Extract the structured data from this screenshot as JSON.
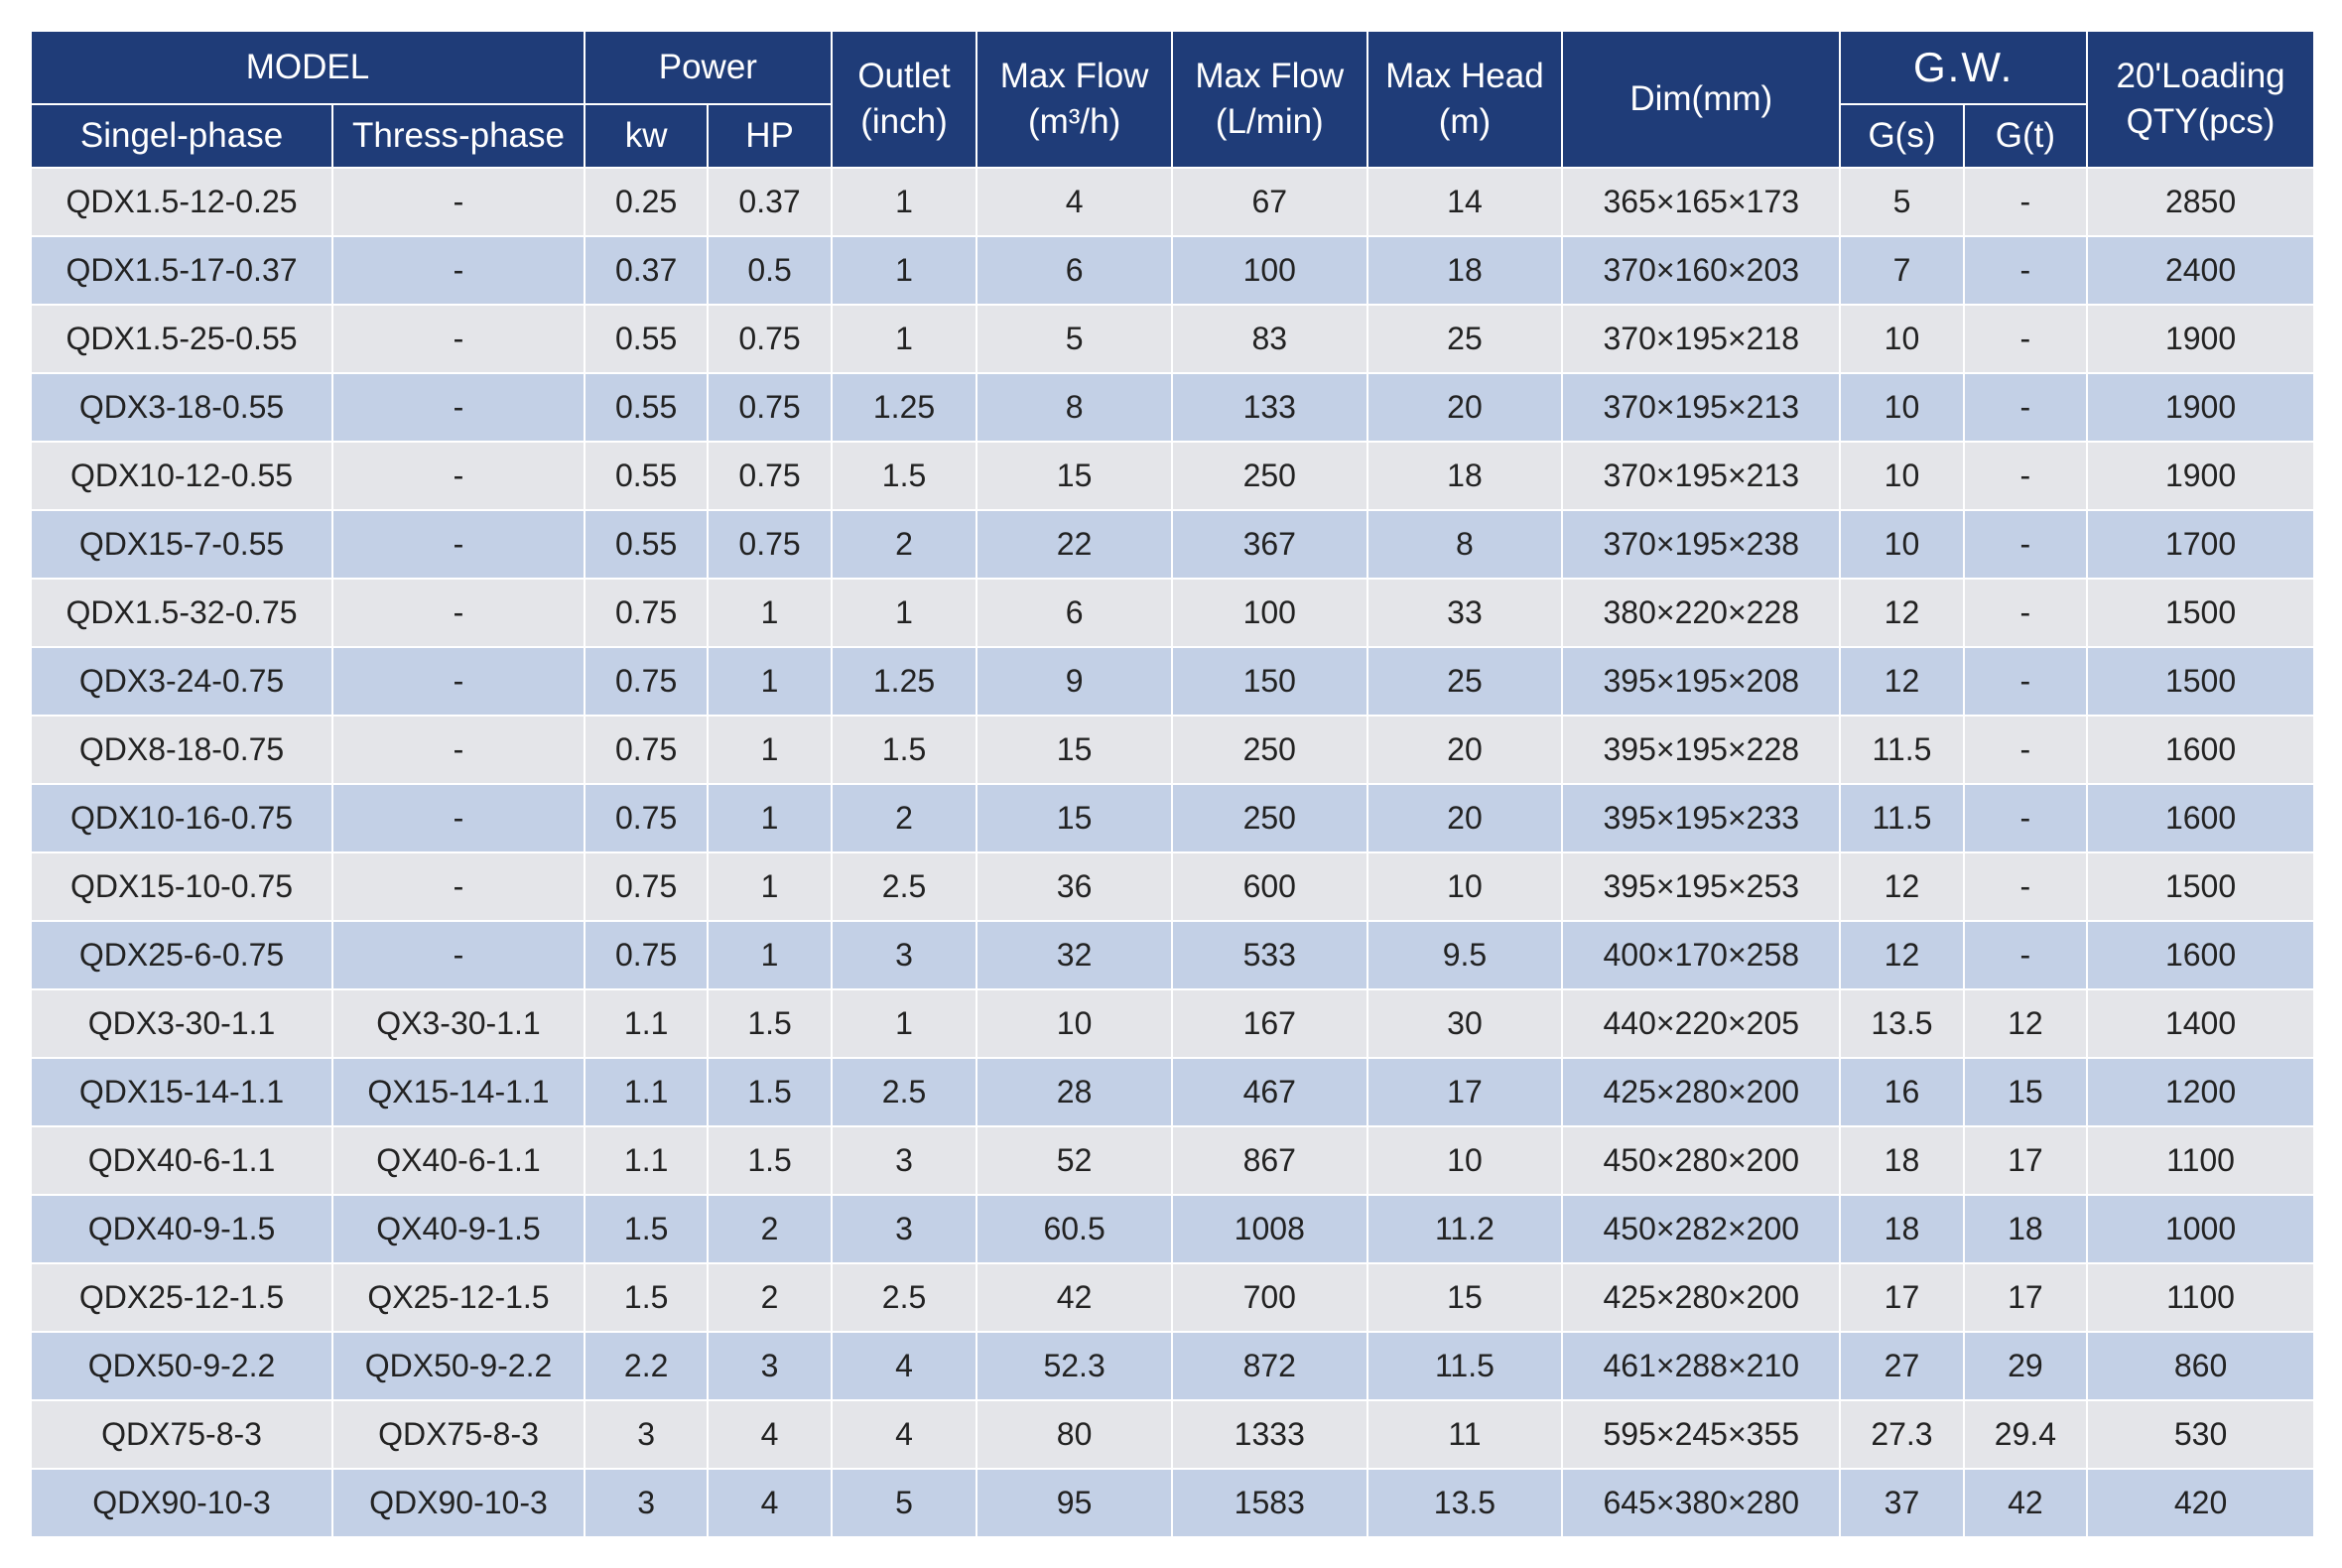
{
  "header": {
    "model": "MODEL",
    "power": "Power",
    "outlet": [
      "Outlet",
      "(inch)"
    ],
    "max_flow_m3h": [
      "Max Flow",
      "(m³/h)"
    ],
    "max_flow_lmin": [
      "Max Flow",
      "(L/min)"
    ],
    "max_head": [
      "Max Head",
      "(m)"
    ],
    "dim": "Dim(mm)",
    "gw": "G.W.",
    "loading": [
      "20'Loading",
      "QTY(pcs)"
    ],
    "single_phase": "Singel-phase",
    "three_phase": "Thress-phase",
    "kw": "kw",
    "hp": "HP",
    "gs": "G(s)",
    "gt": "G(t)"
  },
  "rows": [
    [
      "QDX1.5-12-0.25",
      "-",
      "0.25",
      "0.37",
      "1",
      "4",
      "67",
      "14",
      "365×165×173",
      "5",
      "-",
      "2850"
    ],
    [
      "QDX1.5-17-0.37",
      "-",
      "0.37",
      "0.5",
      "1",
      "6",
      "100",
      "18",
      "370×160×203",
      "7",
      "-",
      "2400"
    ],
    [
      "QDX1.5-25-0.55",
      "-",
      "0.55",
      "0.75",
      "1",
      "5",
      "83",
      "25",
      "370×195×218",
      "10",
      "-",
      "1900"
    ],
    [
      "QDX3-18-0.55",
      "-",
      "0.55",
      "0.75",
      "1.25",
      "8",
      "133",
      "20",
      "370×195×213",
      "10",
      "-",
      "1900"
    ],
    [
      "QDX10-12-0.55",
      "-",
      "0.55",
      "0.75",
      "1.5",
      "15",
      "250",
      "18",
      "370×195×213",
      "10",
      "-",
      "1900"
    ],
    [
      "QDX15-7-0.55",
      "-",
      "0.55",
      "0.75",
      "2",
      "22",
      "367",
      "8",
      "370×195×238",
      "10",
      "-",
      "1700"
    ],
    [
      "QDX1.5-32-0.75",
      "-",
      "0.75",
      "1",
      "1",
      "6",
      "100",
      "33",
      "380×220×228",
      "12",
      "-",
      "1500"
    ],
    [
      "QDX3-24-0.75",
      "-",
      "0.75",
      "1",
      "1.25",
      "9",
      "150",
      "25",
      "395×195×208",
      "12",
      "-",
      "1500"
    ],
    [
      "QDX8-18-0.75",
      "-",
      "0.75",
      "1",
      "1.5",
      "15",
      "250",
      "20",
      "395×195×228",
      "11.5",
      "-",
      "1600"
    ],
    [
      "QDX10-16-0.75",
      "-",
      "0.75",
      "1",
      "2",
      "15",
      "250",
      "20",
      "395×195×233",
      "11.5",
      "-",
      "1600"
    ],
    [
      "QDX15-10-0.75",
      "-",
      "0.75",
      "1",
      "2.5",
      "36",
      "600",
      "10",
      "395×195×253",
      "12",
      "-",
      "1500"
    ],
    [
      "QDX25-6-0.75",
      "-",
      "0.75",
      "1",
      "3",
      "32",
      "533",
      "9.5",
      "400×170×258",
      "12",
      "-",
      "1600"
    ],
    [
      "QDX3-30-1.1",
      "QX3-30-1.1",
      "1.1",
      "1.5",
      "1",
      "10",
      "167",
      "30",
      "440×220×205",
      "13.5",
      "12",
      "1400"
    ],
    [
      "QDX15-14-1.1",
      "QX15-14-1.1",
      "1.1",
      "1.5",
      "2.5",
      "28",
      "467",
      "17",
      "425×280×200",
      "16",
      "15",
      "1200"
    ],
    [
      "QDX40-6-1.1",
      "QX40-6-1.1",
      "1.1",
      "1.5",
      "3",
      "52",
      "867",
      "10",
      "450×280×200",
      "18",
      "17",
      "1100"
    ],
    [
      "QDX40-9-1.5",
      "QX40-9-1.5",
      "1.5",
      "2",
      "3",
      "60.5",
      "1008",
      "11.2",
      "450×282×200",
      "18",
      "18",
      "1000"
    ],
    [
      "QDX25-12-1.5",
      "QX25-12-1.5",
      "1.5",
      "2",
      "2.5",
      "42",
      "700",
      "15",
      "425×280×200",
      "17",
      "17",
      "1100"
    ],
    [
      "QDX50-9-2.2",
      "QDX50-9-2.2",
      "2.2",
      "3",
      "4",
      "52.3",
      "872",
      "11.5",
      "461×288×210",
      "27",
      "29",
      "860"
    ],
    [
      "QDX75-8-3",
      "QDX75-8-3",
      "3",
      "4",
      "4",
      "80",
      "1333",
      "11",
      "595×245×355",
      "27.3",
      "29.4",
      "530"
    ],
    [
      "QDX90-10-3",
      "QDX90-10-3",
      "3",
      "4",
      "5",
      "95",
      "1583",
      "13.5",
      "645×380×280",
      "37",
      "42",
      "420"
    ]
  ]
}
